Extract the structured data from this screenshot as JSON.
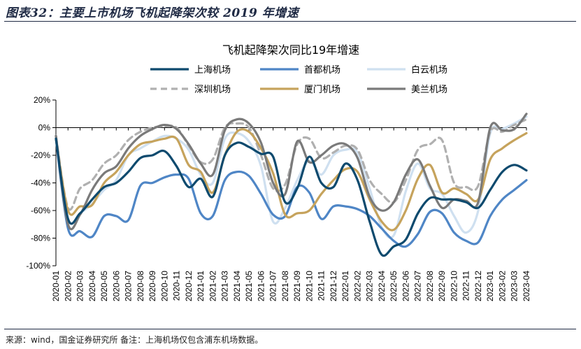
{
  "figure_title": "图表32：主要上市机场飞机起降架次较 2019 年增速",
  "footnote": "来源：wind，国金证券研究所   备注：上海机场仅包含浦东机场数据。",
  "chart_data": {
    "type": "line",
    "title": "飞机起降架次同比19年增速",
    "xlabel": "",
    "ylabel": "",
    "ylim": [
      -100,
      20
    ],
    "yticks": [
      "20%",
      "0%",
      "-20%",
      "-40%",
      "-60%",
      "-80%",
      "-100%"
    ],
    "ytick_values": [
      20,
      0,
      -20,
      -40,
      -60,
      -80,
      -100
    ],
    "grid": false,
    "legend_position": "top",
    "x": [
      "2020-01",
      "2020-02",
      "2020-03",
      "2020-04",
      "2020-05",
      "2020-06",
      "2020-07",
      "2020-08",
      "2020-09",
      "2020-10",
      "2020-11",
      "2020-12",
      "2021-01",
      "2021-02",
      "2021-03",
      "2021-04",
      "2021-05",
      "2021-06",
      "2021-07",
      "2021-08",
      "2021-09",
      "2021-10",
      "2021-11",
      "2021-12",
      "2022-01",
      "2022-02",
      "2022-03",
      "2022-04",
      "2022-05",
      "2022-06",
      "2022-07",
      "2022-08",
      "2022-09",
      "2022-10",
      "2022-11",
      "2022-12",
      "2023-01",
      "2023-02",
      "2023-03",
      "2023-04"
    ],
    "series": [
      {
        "name": "上海机场",
        "color": "#0e4a6e",
        "dash": "solid",
        "values": [
          -8,
          -66,
          -62,
          -52,
          -43,
          -40,
          -32,
          -22,
          -20,
          -17,
          -28,
          -43,
          -37,
          -50,
          -20,
          -11,
          -14,
          -19,
          -21,
          -54,
          -44,
          -21,
          -40,
          -43,
          -26,
          -38,
          -68,
          -92,
          -86,
          -81,
          -62,
          -51,
          -52,
          -52,
          -54,
          -58,
          -45,
          -32,
          -27,
          -31
        ]
      },
      {
        "name": "首都机场",
        "color": "#4f86c6",
        "dash": "solid",
        "values": [
          -8,
          -73,
          -75,
          -79,
          -64,
          -64,
          -67,
          -42,
          -40,
          -36,
          -34,
          -37,
          -62,
          -64,
          -38,
          -32,
          -35,
          -48,
          -63,
          -64,
          -43,
          -47,
          -66,
          -57,
          -57,
          -59,
          -64,
          -73,
          -82,
          -86,
          -77,
          -61,
          -62,
          -76,
          -82,
          -83,
          -64,
          -52,
          -45,
          -38
        ]
      },
      {
        "name": "白云机场",
        "color": "#cfe0f0",
        "dash": "solid",
        "values": [
          -6,
          -66,
          -62,
          -55,
          -45,
          -38,
          -20,
          -15,
          -10,
          -6,
          -8,
          -16,
          -34,
          -40,
          -8,
          -4,
          -10,
          -28,
          -68,
          -58,
          -38,
          -24,
          -34,
          -20,
          -16,
          -18,
          -44,
          -72,
          -78,
          -46,
          -26,
          -44,
          -48,
          -64,
          -76,
          -60,
          -4,
          -1,
          3,
          8
        ]
      },
      {
        "name": "深圳机场",
        "color": "#b0b0b0",
        "dash": "dashed",
        "values": [
          -6,
          -58,
          -44,
          -38,
          -26,
          -20,
          -9,
          -3,
          0,
          1,
          0,
          -13,
          -25,
          -23,
          0,
          3,
          0,
          -20,
          -44,
          -41,
          -12,
          -8,
          -22,
          -18,
          -13,
          -16,
          -38,
          -48,
          -54,
          -38,
          -16,
          -12,
          -9,
          -40,
          -43,
          -42,
          -3,
          -3,
          2,
          6
        ]
      },
      {
        "name": "厦门机场",
        "color": "#c6a35c",
        "dash": "solid",
        "values": [
          -8,
          -60,
          -57,
          -56,
          -40,
          -32,
          -20,
          -12,
          -10,
          -8,
          -8,
          -27,
          -32,
          -47,
          -20,
          -3,
          -3,
          -15,
          -33,
          -63,
          -62,
          -60,
          -48,
          -38,
          -30,
          -32,
          -52,
          -68,
          -74,
          -60,
          -37,
          -27,
          -47,
          -44,
          -48,
          -52,
          -23,
          -15,
          -9,
          -4
        ]
      },
      {
        "name": "美兰机场",
        "color": "#7a7a7a",
        "dash": "solid",
        "values": [
          -6,
          -70,
          -63,
          -45,
          -33,
          -28,
          -15,
          -6,
          -1,
          2,
          -1,
          -12,
          -26,
          -34,
          -2,
          6,
          3,
          -11,
          -40,
          -48,
          -10,
          -25,
          -20,
          -13,
          -12,
          -22,
          -50,
          -60,
          -54,
          -34,
          -23,
          -42,
          -58,
          -52,
          -53,
          -54,
          0,
          -2,
          -1,
          10
        ]
      }
    ]
  }
}
